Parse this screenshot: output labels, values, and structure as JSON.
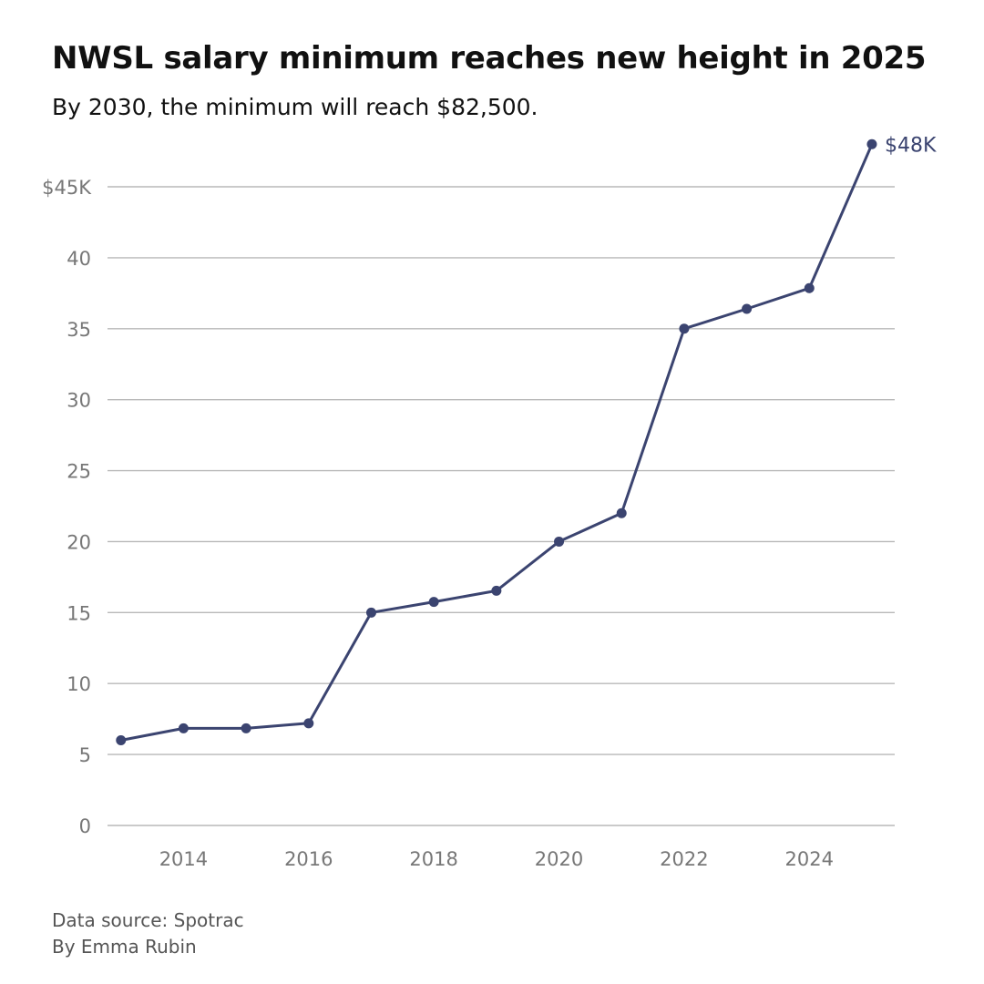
{
  "chart_data": {
    "type": "line",
    "title": "NWSL salary minimum reaches new height in 2025",
    "subtitle": "By 2030, the minimum will reach $82,500.",
    "xlabel": "",
    "ylabel": "",
    "x": [
      2013,
      2014,
      2015,
      2016,
      2017,
      2018,
      2019,
      2020,
      2021,
      2022,
      2023,
      2024,
      2025
    ],
    "series": [
      {
        "name": "Salary minimum ($K)",
        "values": [
          6.0,
          6.842,
          6.842,
          7.2,
          15.0,
          15.75,
          16.538,
          20.0,
          22.0,
          35.0,
          36.4,
          37.856,
          48.0
        ]
      }
    ],
    "xlim": [
      2012.8,
      2025.35
    ],
    "ylim": [
      0,
      45
    ],
    "xticks": [
      2014,
      2016,
      2018,
      2020,
      2022,
      2024
    ],
    "xtick_labels": [
      "2014",
      "2016",
      "2018",
      "2020",
      "2022",
      "2024"
    ],
    "yticks": [
      0,
      5,
      10,
      15,
      20,
      25,
      30,
      35,
      40,
      45
    ],
    "ytick_labels": [
      "0",
      "5",
      "10",
      "15",
      "20",
      "25",
      "30",
      "35",
      "40",
      "$45K"
    ],
    "end_label": "$48K",
    "grid": true,
    "line_color": "#3b4470",
    "grid_color": "#b8b8b8",
    "source": "Data source: Spotrac",
    "byline": "By Emma Rubin"
  }
}
